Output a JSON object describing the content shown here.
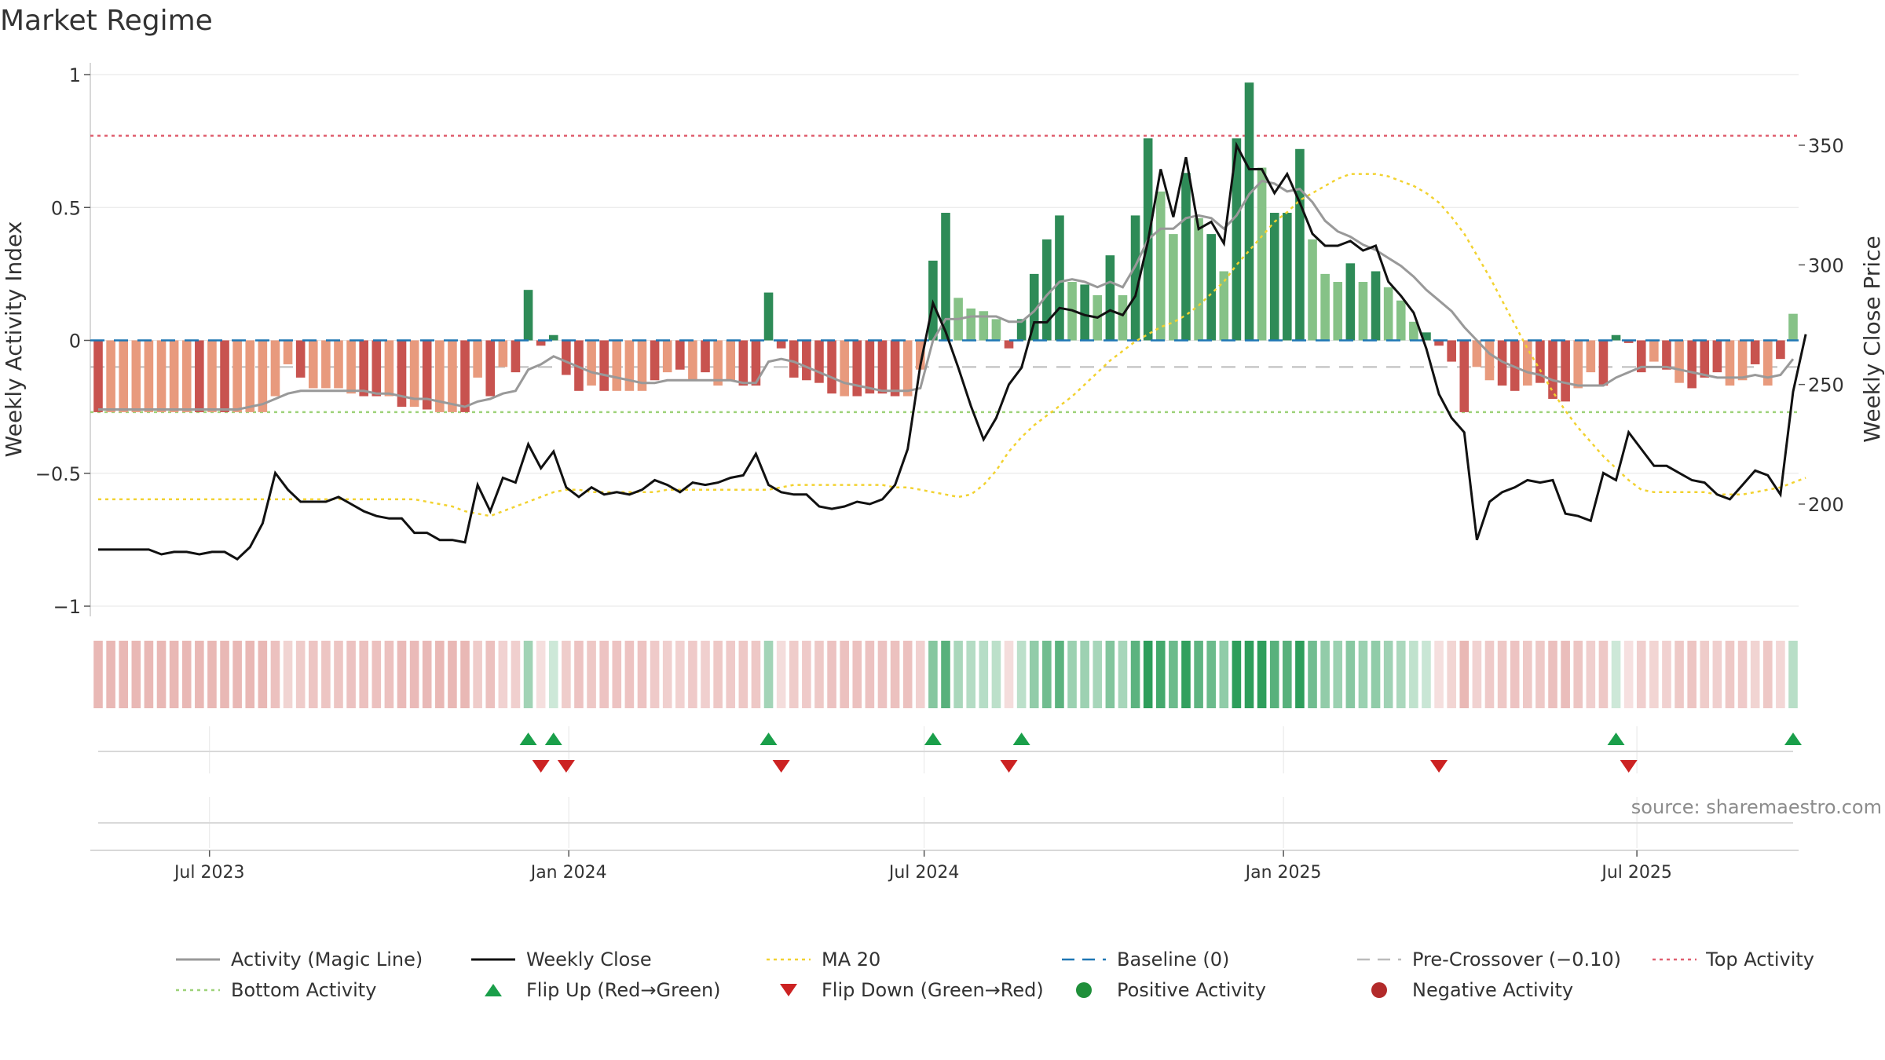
{
  "title": "Market Regime",
  "source": "source: sharemaestro.com",
  "colors": {
    "red_dark": "#c8534f",
    "red_light": "#e89a7d",
    "green_dark": "#2e8b57",
    "green_light": "#86c287",
    "magic_line": "#999999",
    "close": "#111111",
    "ma20": "#f2d230",
    "baseline": "#1f77b4",
    "precross": "#bbbbbb",
    "top": "#e06070",
    "bottom": "#9ed27a",
    "flip_up": "#1a9f4a",
    "flip_down": "#cc2222"
  },
  "legend": [
    {
      "label": "Activity (Magic Line)",
      "key": "line-solid-gray"
    },
    {
      "label": "Weekly Close",
      "key": "line-solid-black"
    },
    {
      "label": "MA 20",
      "key": "line-dotted-yellow"
    },
    {
      "label": "Baseline (0)",
      "key": "line-dashed-blue"
    },
    {
      "label": "Pre-Crossover (−0.10)",
      "key": "line-dashed-gray"
    },
    {
      "label": "Top Activity",
      "key": "line-dotted-red"
    },
    {
      "label": "Bottom Activity",
      "key": "line-dotted-green"
    },
    {
      "label": "Flip Up (Red→Green)",
      "key": "triangle-up-green"
    },
    {
      "label": "Flip Down (Green→Red)",
      "key": "triangle-down-red"
    },
    {
      "label": "Positive Activity",
      "key": "dot-green"
    },
    {
      "label": "Negative Activity",
      "key": "dot-red"
    }
  ],
  "chart_data": {
    "type": "bar",
    "title": "Market Regime",
    "x_start": "2023-05-05",
    "x_end": "2025-09-19",
    "x_ticks": [
      {
        "date": "2023-07-01",
        "label": "Jul 2023"
      },
      {
        "date": "2024-01-01",
        "label": "Jan 2024"
      },
      {
        "date": "2024-07-01",
        "label": "Jul 2024"
      },
      {
        "date": "2025-01-01",
        "label": "Jan 2025"
      },
      {
        "date": "2025-07-01",
        "label": "Jul 2025"
      }
    ],
    "ylabel_left": "Weekly Activity Index",
    "ylabel_right": "Weekly Close Price",
    "ylim_left": [
      -1,
      1
    ],
    "ylim_right": [
      145,
      375
    ],
    "yticks_left": [
      {
        "value": 1,
        "label": "1"
      },
      {
        "value": 0.5,
        "label": "0.5"
      },
      {
        "value": 0,
        "label": "0"
      },
      {
        "value": -0.5,
        "label": "−0.5"
      },
      {
        "value": -1,
        "label": "−1"
      }
    ],
    "yticks_right": [
      {
        "value": 350,
        "label": "350"
      },
      {
        "value": 300,
        "label": "300"
      },
      {
        "value": 250,
        "label": "250"
      },
      {
        "value": 200,
        "label": "200"
      }
    ],
    "reference_lines": {
      "top": 0.77,
      "bottom": -0.27,
      "baseline": 0,
      "pre_crossover": -0.1
    },
    "grid": true,
    "activity": [
      -0.27,
      -0.27,
      -0.27,
      -0.27,
      -0.27,
      -0.27,
      -0.27,
      -0.27,
      -0.27,
      -0.27,
      -0.27,
      -0.27,
      -0.27,
      -0.27,
      -0.21,
      -0.09,
      -0.14,
      -0.18,
      -0.18,
      -0.18,
      -0.2,
      -0.21,
      -0.21,
      -0.21,
      -0.25,
      -0.25,
      -0.26,
      -0.27,
      -0.27,
      -0.27,
      -0.14,
      -0.21,
      -0.1,
      -0.12,
      0.19,
      -0.02,
      0.02,
      -0.13,
      -0.19,
      -0.17,
      -0.19,
      -0.19,
      -0.19,
      -0.19,
      -0.15,
      -0.12,
      -0.11,
      -0.15,
      -0.12,
      -0.17,
      -0.15,
      -0.17,
      -0.17,
      0.18,
      -0.03,
      -0.14,
      -0.15,
      -0.16,
      -0.2,
      -0.21,
      -0.21,
      -0.2,
      -0.2,
      -0.21,
      -0.21,
      -0.11,
      0.3,
      0.48,
      0.16,
      0.12,
      0.11,
      0.08,
      -0.03,
      0.08,
      0.25,
      0.38,
      0.47,
      0.22,
      0.21,
      0.17,
      0.32,
      0.17,
      0.47,
      0.76,
      0.56,
      0.4,
      0.63,
      0.46,
      0.4,
      0.26,
      0.76,
      0.97,
      0.65,
      0.48,
      0.48,
      0.72,
      0.38,
      0.25,
      0.22,
      0.29,
      0.22,
      0.26,
      0.2,
      0.15,
      0.07,
      0.03,
      -0.02,
      -0.08,
      -0.27,
      -0.1,
      -0.15,
      -0.17,
      -0.19,
      -0.17,
      -0.16,
      -0.22,
      -0.23,
      -0.18,
      -0.12,
      -0.17,
      0.02,
      -0.01,
      -0.12,
      -0.08,
      -0.11,
      -0.16,
      -0.18,
      -0.14,
      -0.12,
      -0.17,
      -0.15,
      -0.09,
      -0.17,
      -0.07,
      0.1
    ],
    "tint": [
      "d",
      "l",
      "l",
      "l",
      "l",
      "l",
      "l",
      "l",
      "d",
      "l",
      "d",
      "l",
      "l",
      "l",
      "l",
      "l",
      "d",
      "l",
      "l",
      "l",
      "l",
      "d",
      "d",
      "l",
      "d",
      "l",
      "d",
      "l",
      "l",
      "d",
      "l",
      "d",
      "l",
      "d",
      "d",
      "d",
      "d",
      "d",
      "d",
      "l",
      "d",
      "l",
      "l",
      "l",
      "d",
      "l",
      "d",
      "l",
      "d",
      "l",
      "l",
      "d",
      "d",
      "d",
      "d",
      "d",
      "d",
      "d",
      "d",
      "l",
      "d",
      "d",
      "d",
      "d",
      "l",
      "l",
      "d",
      "d",
      "l",
      "l",
      "l",
      "l",
      "d",
      "d",
      "d",
      "d",
      "d",
      "l",
      "d",
      "l",
      "d",
      "l",
      "d",
      "d",
      "l",
      "l",
      "d",
      "l",
      "d",
      "l",
      "d",
      "d",
      "l",
      "d",
      "d",
      "d",
      "l",
      "l",
      "l",
      "d",
      "l",
      "d",
      "l",
      "l",
      "l",
      "d",
      "d",
      "d",
      "d",
      "l",
      "l",
      "d",
      "d",
      "l",
      "d",
      "d",
      "d",
      "l",
      "l",
      "d",
      "d",
      "d",
      "d",
      "l",
      "d",
      "l",
      "d",
      "d",
      "d",
      "l",
      "l",
      "d",
      "l",
      "d",
      "l",
      "d",
      "d"
    ],
    "magic_line": [
      -0.26,
      -0.26,
      -0.26,
      -0.26,
      -0.26,
      -0.26,
      -0.26,
      -0.26,
      -0.26,
      -0.26,
      -0.26,
      -0.26,
      -0.25,
      -0.24,
      -0.22,
      -0.2,
      -0.19,
      -0.19,
      -0.19,
      -0.19,
      -0.19,
      -0.19,
      -0.2,
      -0.2,
      -0.21,
      -0.22,
      -0.22,
      -0.23,
      -0.24,
      -0.25,
      -0.23,
      -0.22,
      -0.2,
      -0.19,
      -0.11,
      -0.09,
      -0.06,
      -0.08,
      -0.1,
      -0.12,
      -0.13,
      -0.14,
      -0.15,
      -0.16,
      -0.16,
      -0.15,
      -0.15,
      -0.15,
      -0.15,
      -0.15,
      -0.15,
      -0.16,
      -0.16,
      -0.08,
      -0.07,
      -0.08,
      -0.1,
      -0.12,
      -0.14,
      -0.16,
      -0.17,
      -0.18,
      -0.19,
      -0.19,
      -0.19,
      -0.18,
      0.0,
      0.08,
      0.08,
      0.09,
      0.09,
      0.09,
      0.07,
      0.07,
      0.11,
      0.17,
      0.22,
      0.23,
      0.22,
      0.2,
      0.22,
      0.2,
      0.28,
      0.38,
      0.42,
      0.42,
      0.46,
      0.47,
      0.46,
      0.42,
      0.47,
      0.55,
      0.6,
      0.59,
      0.56,
      0.57,
      0.52,
      0.45,
      0.41,
      0.39,
      0.36,
      0.34,
      0.31,
      0.28,
      0.24,
      0.19,
      0.15,
      0.11,
      0.05,
      0.0,
      -0.05,
      -0.08,
      -0.1,
      -0.12,
      -0.13,
      -0.15,
      -0.16,
      -0.17,
      -0.17,
      -0.17,
      -0.14,
      -0.12,
      -0.1,
      -0.1,
      -0.1,
      -0.11,
      -0.12,
      -0.13,
      -0.14,
      -0.14,
      -0.14,
      -0.13,
      -0.14,
      -0.13,
      -0.07
    ],
    "weekly_close": [
      181,
      181,
      181,
      181,
      181,
      179,
      180,
      180,
      179,
      180,
      180,
      177,
      182,
      192,
      213,
      206,
      201,
      201,
      201,
      203,
      200,
      197,
      195,
      194,
      194,
      188,
      188,
      185,
      185,
      184,
      208,
      197,
      211,
      209,
      225,
      215,
      222,
      207,
      203,
      207,
      204,
      205,
      204,
      206,
      210,
      208,
      205,
      209,
      208,
      209,
      211,
      212,
      221,
      208,
      205,
      204,
      204,
      199,
      198,
      199,
      201,
      200,
      202,
      208,
      223,
      258,
      284,
      272,
      257,
      241,
      227,
      236,
      250,
      257,
      276,
      276,
      282,
      281,
      279,
      278,
      281,
      279,
      287,
      310,
      340,
      320,
      345,
      315,
      318,
      309,
      350,
      340,
      340,
      330,
      338,
      326,
      313,
      308,
      308,
      310,
      306,
      308,
      293,
      287,
      280,
      265,
      246,
      236,
      230,
      185,
      201,
      205,
      207,
      210,
      209,
      210,
      196,
      195,
      193,
      213,
      210,
      230,
      223,
      216,
      216,
      213,
      210,
      209,
      204,
      202,
      208,
      214,
      212,
      204,
      247,
      271
    ],
    "ma20": [
      202,
      202,
      202,
      202,
      202,
      202,
      202,
      202,
      202,
      202,
      202,
      202,
      202,
      202,
      202,
      202,
      202,
      202,
      202,
      202,
      202,
      202,
      202,
      202,
      202,
      202,
      201,
      200,
      199,
      197,
      196,
      195,
      197,
      199,
      201,
      203,
      205,
      206,
      206,
      205,
      205,
      205,
      205,
      205,
      205,
      206,
      206,
      206,
      206,
      206,
      206,
      206,
      206,
      206,
      207,
      208,
      208,
      208,
      208,
      208,
      208,
      208,
      208,
      207,
      207,
      206,
      205,
      204,
      203,
      204,
      208,
      214,
      222,
      228,
      233,
      237,
      241,
      245,
      250,
      255,
      260,
      264,
      268,
      271,
      274,
      276,
      279,
      283,
      288,
      293,
      300,
      306,
      312,
      318,
      322,
      327,
      330,
      333,
      336,
      338,
      338,
      338,
      337,
      335,
      333,
      330,
      326,
      320,
      313,
      304,
      295,
      285,
      275,
      265,
      256,
      247,
      239,
      232,
      226,
      220,
      215,
      210,
      206,
      205,
      205,
      205,
      205,
      205,
      204,
      204,
      204,
      205,
      206,
      207,
      209,
      211
    ]
  }
}
